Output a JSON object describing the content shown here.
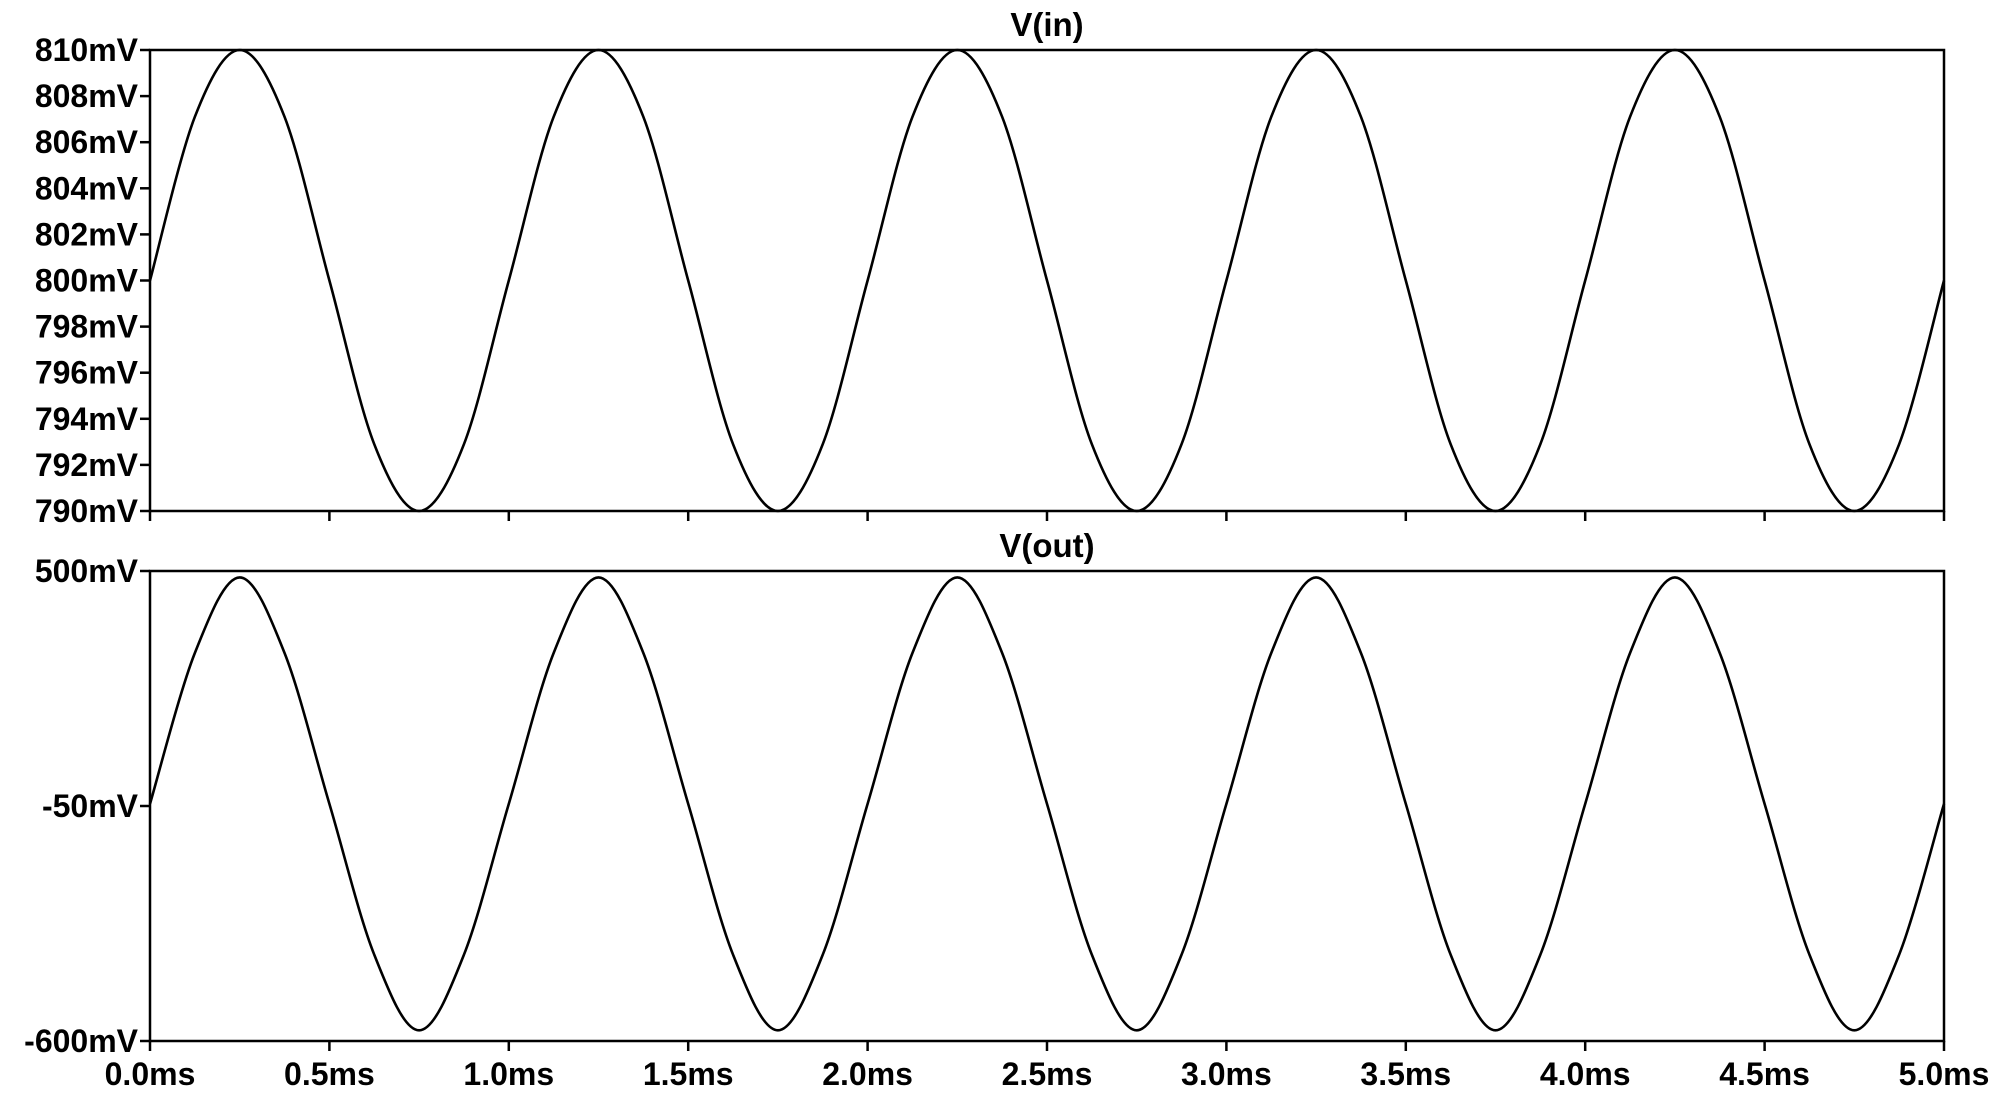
{
  "chart_data": [
    {
      "type": "line",
      "title": "V(in)",
      "x_unit": "ms",
      "xlim": [
        0.0,
        5.0
      ],
      "y_unit": "mV",
      "ylim": [
        790,
        810
      ],
      "y_ticks": [
        810,
        808,
        806,
        804,
        802,
        800,
        798,
        796,
        794,
        792,
        790
      ],
      "y_tick_labels": [
        "810mV",
        "808mV",
        "806mV",
        "804mV",
        "802mV",
        "800mV",
        "798mV",
        "796mV",
        "794mV",
        "792mV",
        "790mV"
      ],
      "series": [
        {
          "x": [
            0.0,
            0.125,
            0.25,
            0.375,
            0.5,
            0.625,
            0.75,
            0.875,
            1.0,
            1.125,
            1.25,
            1.375,
            1.5,
            1.625,
            1.75,
            1.875,
            2.0,
            2.125,
            2.25,
            2.375,
            2.5,
            2.625,
            2.75,
            2.875,
            3.0,
            3.125,
            3.25,
            3.375,
            3.5,
            3.625,
            3.75,
            3.875,
            4.0,
            4.125,
            4.25,
            4.375,
            4.5,
            4.625,
            4.75,
            4.875,
            5.0
          ],
          "values": [
            800.0,
            807.1,
            810.0,
            807.1,
            800.0,
            792.9,
            790.0,
            792.9,
            800.0,
            807.1,
            810.0,
            807.1,
            800.0,
            792.9,
            790.0,
            792.9,
            800.0,
            807.1,
            810.0,
            807.1,
            800.0,
            792.9,
            790.0,
            792.9,
            800.0,
            807.1,
            810.0,
            807.1,
            800.0,
            792.9,
            790.0,
            792.9,
            800.0,
            807.1,
            810.0,
            807.1,
            800.0,
            792.9,
            790.0,
            792.9,
            800.0
          ]
        }
      ]
    },
    {
      "type": "line",
      "title": "V(out)",
      "x_unit": "ms",
      "xlim": [
        0.0,
        5.0
      ],
      "y_unit": "mV",
      "ylim": [
        -600,
        500
      ],
      "y_ticks": [
        500,
        -50,
        -600
      ],
      "y_tick_labels": [
        "500mV",
        "-50mV",
        "-600mV"
      ],
      "series": [
        {
          "x": [
            0.0,
            0.125,
            0.25,
            0.375,
            0.5,
            0.625,
            0.75,
            0.875,
            1.0,
            1.125,
            1.25,
            1.375,
            1.5,
            1.625,
            1.75,
            1.875,
            2.0,
            2.125,
            2.25,
            2.375,
            2.5,
            2.625,
            2.75,
            2.875,
            3.0,
            3.125,
            3.25,
            3.375,
            3.5,
            3.625,
            3.75,
            3.875,
            4.0,
            4.125,
            4.25,
            4.375,
            4.5,
            4.625,
            4.75,
            4.875,
            5.0
          ],
          "values": [
            -45,
            308,
            485,
            308,
            -45,
            -398,
            -575,
            -398,
            -45,
            308,
            485,
            308,
            -45,
            -398,
            -575,
            -398,
            -45,
            308,
            485,
            308,
            -45,
            -398,
            -575,
            -398,
            -45,
            308,
            485,
            308,
            -45,
            -398,
            -575,
            -398,
            -45,
            308,
            485,
            308,
            -45,
            -398,
            -575,
            -398,
            -45
          ]
        }
      ]
    }
  ],
  "x_axis": {
    "ticks": [
      0.0,
      0.5,
      1.0,
      1.5,
      2.0,
      2.5,
      3.0,
      3.5,
      4.0,
      4.5,
      5.0
    ],
    "tick_labels": [
      "0.0ms",
      "0.5ms",
      "1.0ms",
      "1.5ms",
      "2.0ms",
      "2.5ms",
      "3.0ms",
      "3.5ms",
      "4.0ms",
      "4.5ms",
      "5.0ms"
    ]
  }
}
